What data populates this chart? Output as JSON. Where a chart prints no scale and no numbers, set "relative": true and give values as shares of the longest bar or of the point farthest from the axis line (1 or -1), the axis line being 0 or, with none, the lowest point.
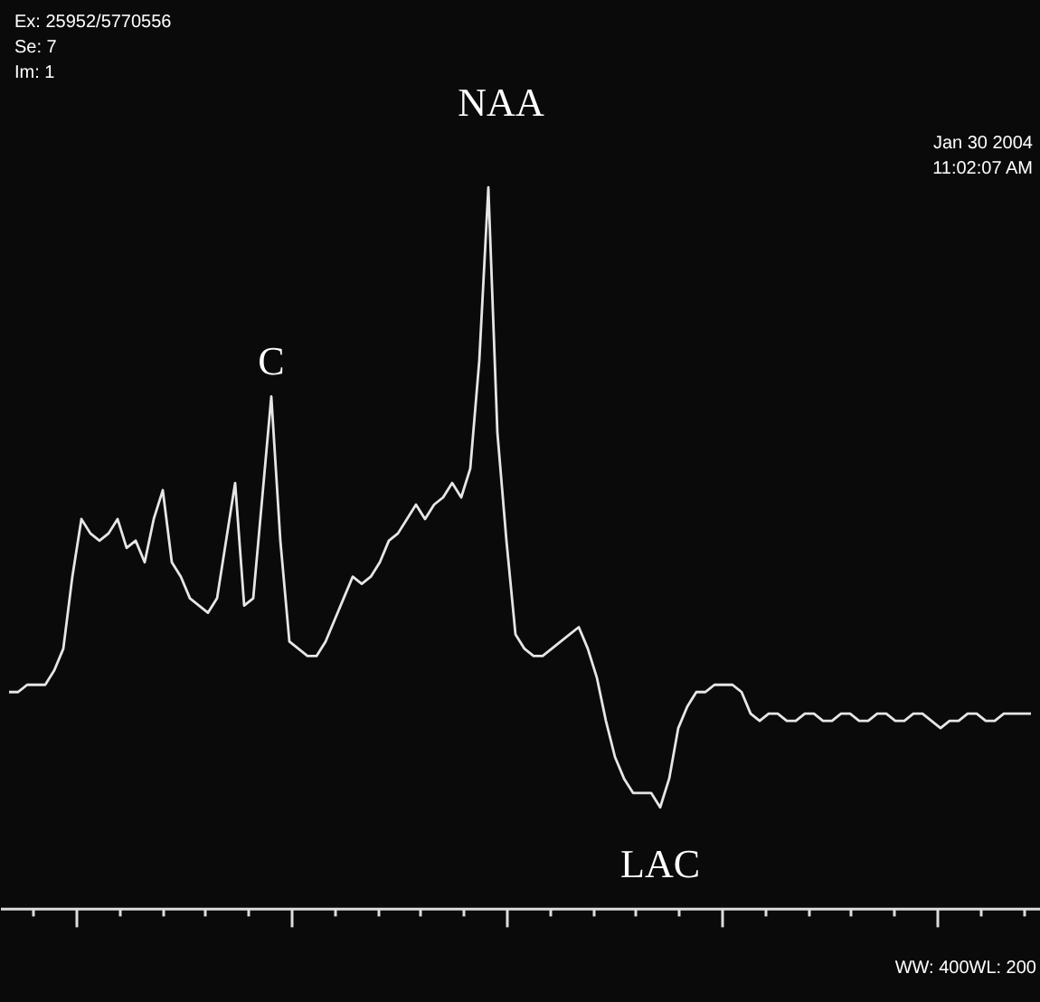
{
  "chart_data": {
    "type": "line",
    "relative": true,
    "grid": false,
    "categories": [
      null,
      null,
      null,
      null,
      null,
      null,
      null,
      null,
      null,
      null,
      null,
      null,
      null,
      null,
      null,
      null,
      null,
      null,
      null,
      null,
      null,
      null,
      null,
      null,
      null,
      null,
      null,
      null,
      null,
      null,
      null,
      null,
      null,
      null,
      null,
      null,
      null,
      null,
      null,
      null,
      null,
      null,
      null,
      null,
      null,
      null,
      null,
      null,
      null,
      null,
      null,
      null,
      null,
      null,
      null,
      null,
      null,
      null,
      null,
      null,
      null,
      null,
      null,
      null,
      null,
      null,
      null,
      null,
      null,
      null,
      null,
      null,
      null,
      null,
      null,
      null,
      null,
      null,
      null,
      null,
      null,
      null,
      null,
      null,
      null,
      null,
      null,
      null,
      null,
      null,
      null,
      null,
      null,
      null,
      null,
      null,
      null,
      null,
      null,
      null,
      null,
      null,
      null,
      null,
      null,
      null,
      null,
      null,
      null,
      null,
      null,
      null,
      null,
      null
    ],
    "series": [
      {
        "color": "#e6e6e6",
        "values": [
          0.3,
          0.3,
          0.31,
          0.31,
          0.31,
          0.33,
          0.36,
          0.46,
          0.54,
          0.52,
          0.51,
          0.52,
          0.54,
          0.5,
          0.51,
          0.48,
          0.54,
          0.58,
          0.48,
          0.46,
          0.43,
          0.42,
          0.41,
          0.43,
          0.51,
          0.59,
          0.42,
          0.43,
          0.57,
          0.71,
          0.51,
          0.37,
          0.36,
          0.35,
          0.35,
          0.37,
          0.4,
          0.43,
          0.46,
          0.45,
          0.46,
          0.48,
          0.51,
          0.52,
          0.54,
          0.56,
          0.54,
          0.56,
          0.57,
          0.59,
          0.57,
          0.61,
          0.76,
          1,
          0.66,
          0.51,
          0.38,
          0.36,
          0.35,
          0.35,
          0.36,
          0.37,
          0.38,
          0.39,
          0.36,
          0.32,
          0.26,
          0.21,
          0.18,
          0.16,
          0.16,
          0.16,
          0.14,
          0.18,
          0.25,
          0.28,
          0.3,
          0.3,
          0.31,
          0.31,
          0.31,
          0.3,
          0.27,
          0.26,
          0.27,
          0.27,
          0.26,
          0.26,
          0.27,
          0.27,
          0.26,
          0.26,
          0.27,
          0.27,
          0.26,
          0.26,
          0.27,
          0.27,
          0.26,
          0.26,
          0.27,
          0.27,
          0.26,
          0.25,
          0.26,
          0.26,
          0.27,
          0.27,
          0.26,
          0.26,
          0.27,
          0.27,
          0.27,
          0.27
        ]
      }
    ],
    "annotations": [
      "C",
      "NAA",
      "LAC",
      "Ex: 25952/5770556",
      "Se: 7",
      "Im: 1",
      "Jan 30 2004",
      "11:02:07 AM",
      "WW: 400WL: 200"
    ]
  }
}
